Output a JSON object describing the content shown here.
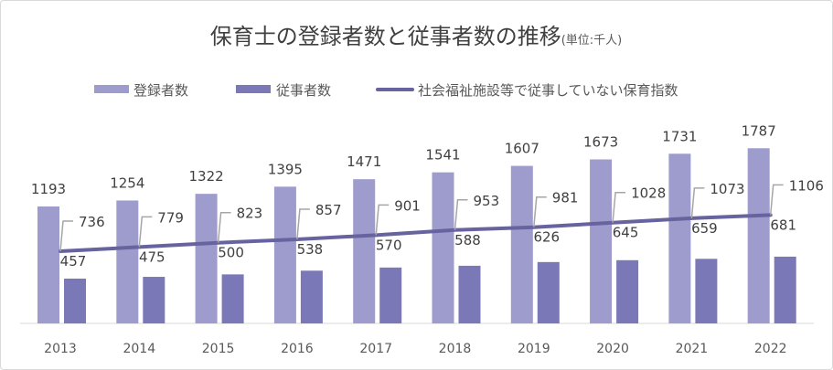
{
  "chart_data": {
    "type": "bar",
    "title": "保育士の登録者数と従事者数の推移",
    "title_unit": "(単位:千人)",
    "xlabel": "",
    "ylabel": "",
    "ylim": [
      0,
      2000
    ],
    "grid": false,
    "legend_position": "top",
    "categories": [
      "2013",
      "2014",
      "2015",
      "2016",
      "2017",
      "2018",
      "2019",
      "2020",
      "2021",
      "2022"
    ],
    "series": [
      {
        "name": "登録者数",
        "type": "bar",
        "color": "#9e9bcd",
        "values": [
          1193,
          1254,
          1322,
          1395,
          1471,
          1541,
          1607,
          1673,
          1731,
          1787
        ]
      },
      {
        "name": "従事者数",
        "type": "bar",
        "color": "#7b78b8",
        "values": [
          457,
          475,
          500,
          538,
          570,
          588,
          626,
          645,
          659,
          681
        ]
      },
      {
        "name": "社会福祉施設等で従事していない保育指数",
        "type": "line",
        "color": "#67639f",
        "values": [
          736,
          779,
          823,
          857,
          901,
          953,
          981,
          1028,
          1073,
          1106
        ]
      }
    ]
  }
}
